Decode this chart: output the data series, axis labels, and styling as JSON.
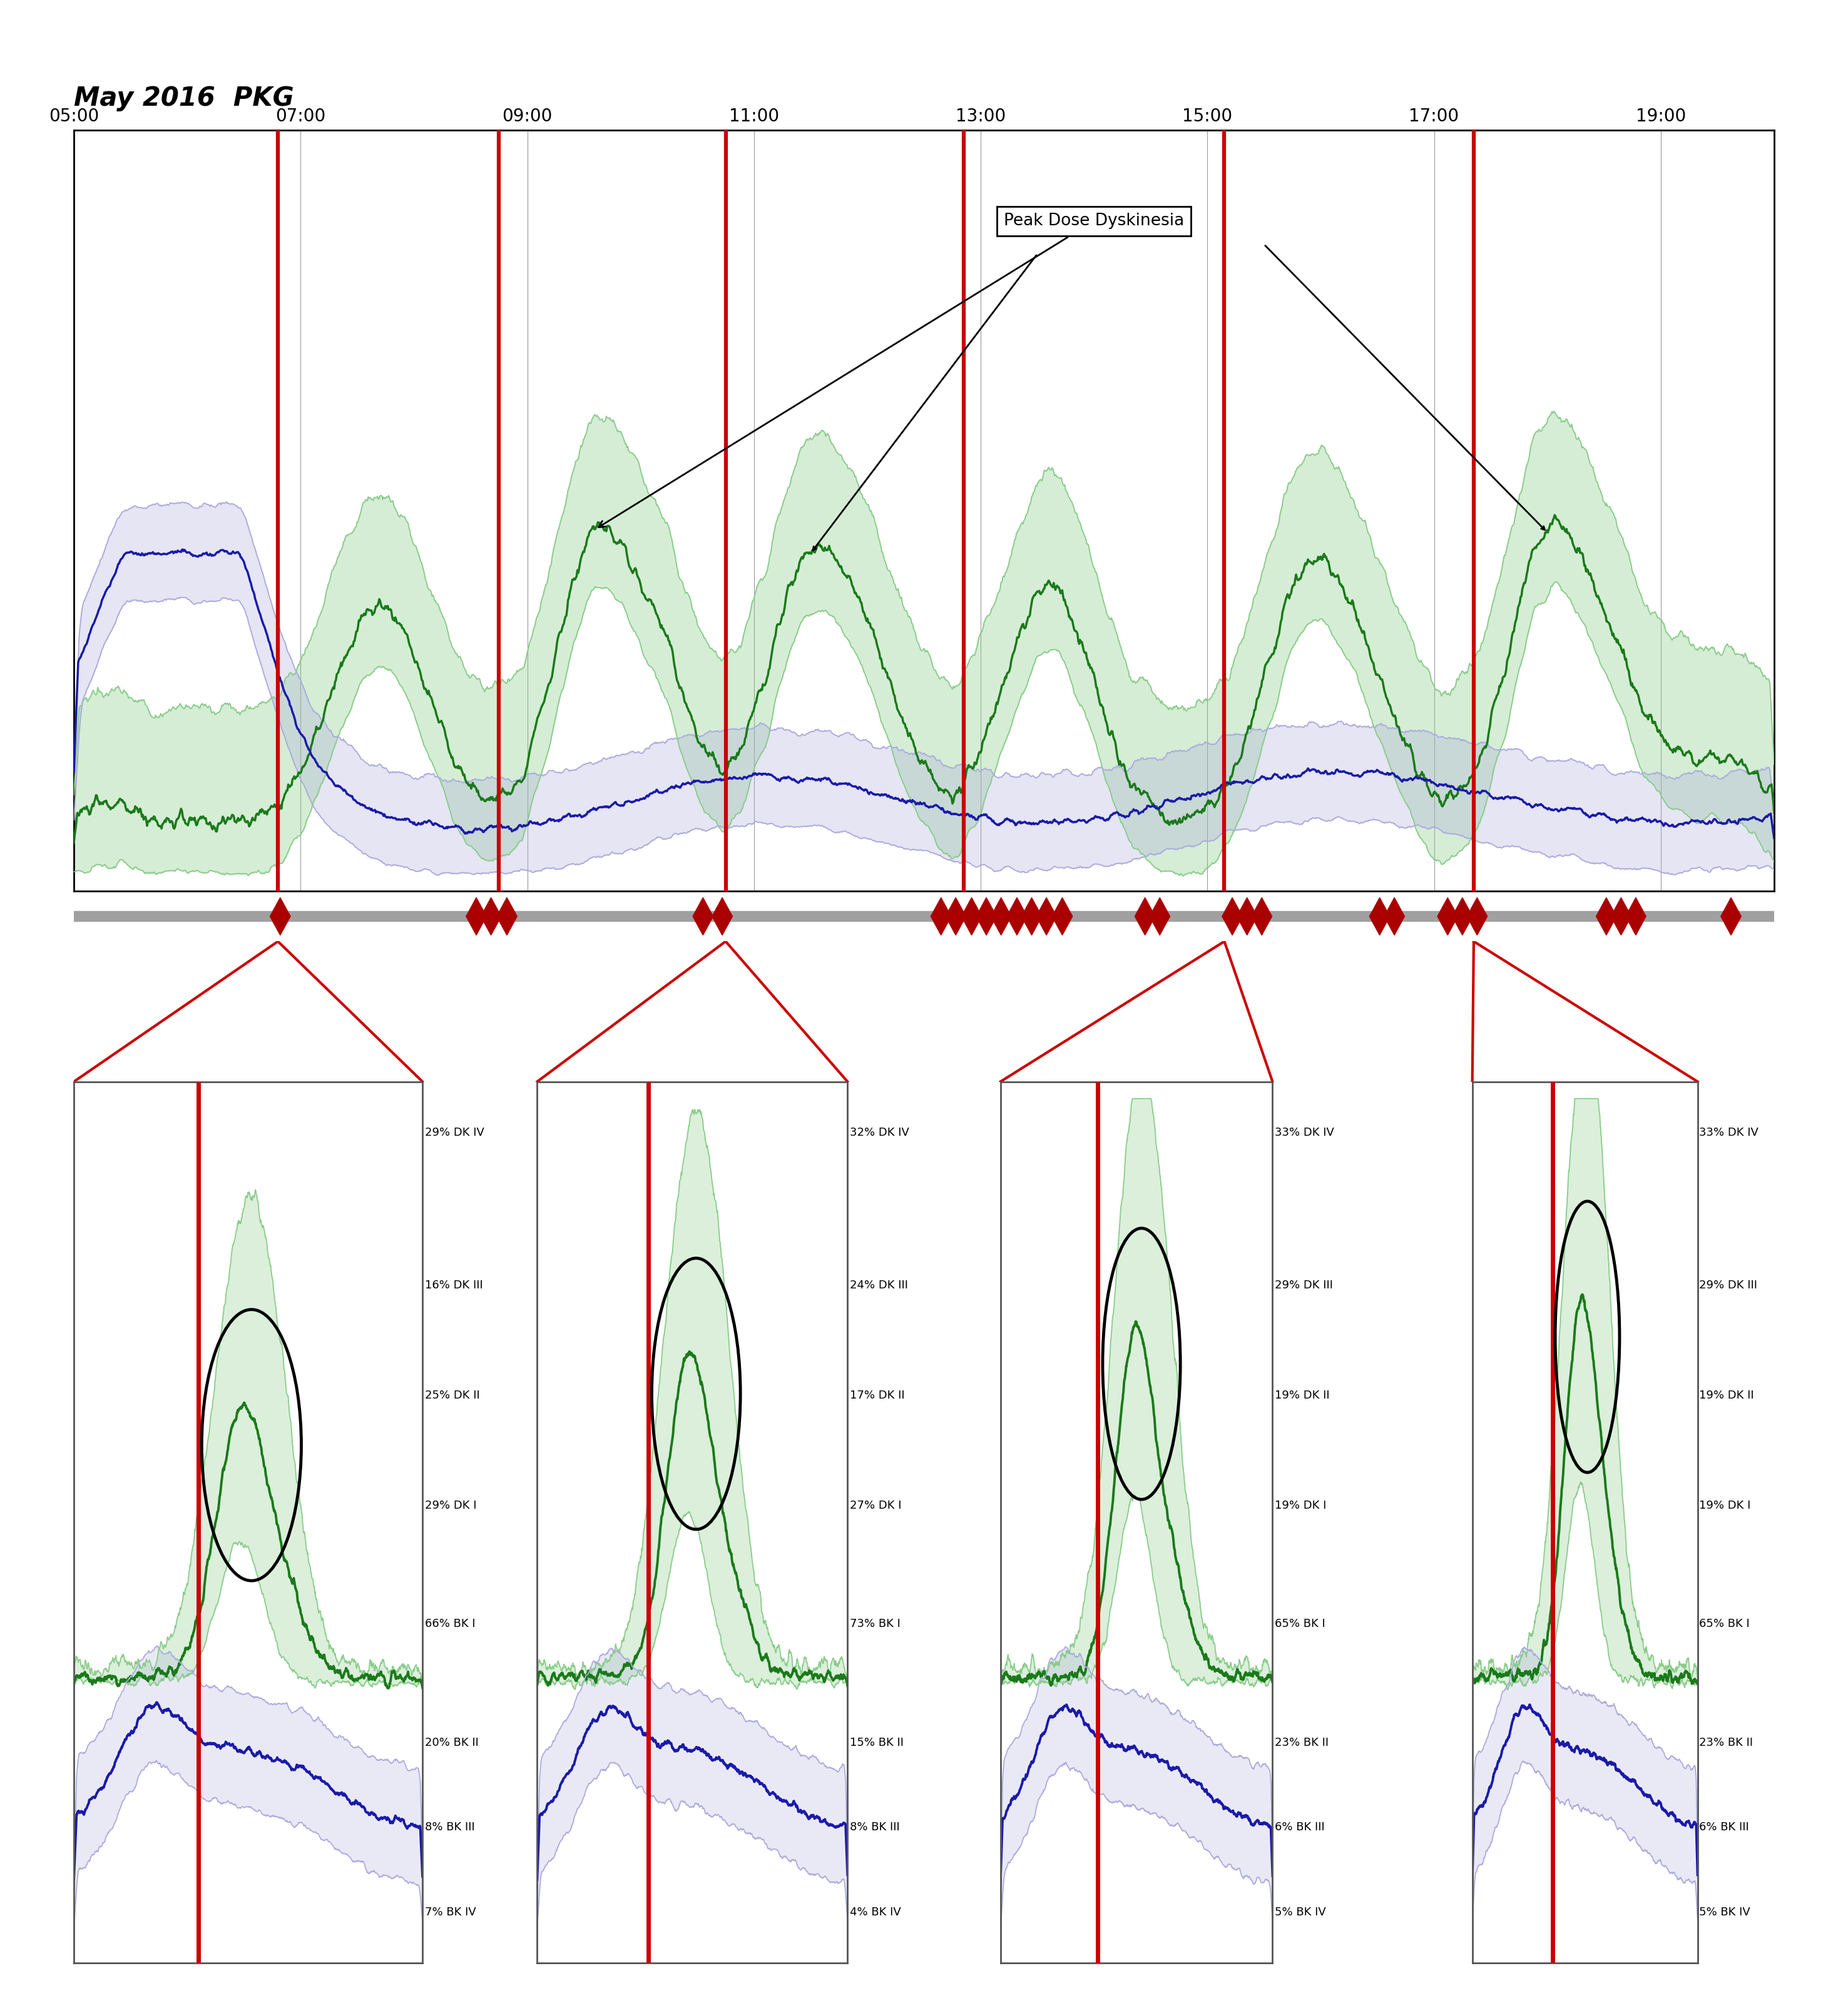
{
  "title": "May 2016  PKG",
  "annotation_text": "Peak Dose Dyskinesia",
  "top_x_ticks": [
    "05:00",
    "07:00",
    "09:00",
    "11:00",
    "13:00",
    "15:00",
    "17:00",
    "19:00"
  ],
  "tick_positions": [
    0,
    2,
    4,
    6,
    8,
    10,
    12,
    14
  ],
  "red_lines_top": [
    1.8,
    3.75,
    5.75,
    7.85,
    10.15,
    12.35
  ],
  "diamond_x": [
    1.82,
    3.55,
    3.68,
    3.82,
    5.55,
    5.72,
    7.65,
    7.78,
    7.92,
    8.05,
    8.18,
    8.32,
    8.45,
    8.58,
    8.72,
    9.45,
    9.58,
    10.22,
    10.35,
    10.48,
    11.52,
    11.65,
    12.12,
    12.25,
    12.38,
    13.52,
    13.65,
    13.78,
    14.62
  ],
  "panel_labels": [
    {
      "dk": [
        "29% DK IV",
        "16% DK III",
        "25% DK II",
        "29% DK I"
      ],
      "bk": [
        "66% BK I",
        "20% BK II",
        "8% BK III",
        "7% BK IV"
      ]
    },
    {
      "dk": [
        "32% DK IV",
        "24% DK III",
        "17% DK II",
        "27% DK I"
      ],
      "bk": [
        "73% BK I",
        "15% BK II",
        "8% BK III",
        "4% BK IV"
      ]
    },
    {
      "dk": [
        "33% DK IV",
        "29% DK III",
        "19% DK II",
        "19% DK I"
      ],
      "bk": [
        "65% BK I",
        "23% BK II",
        "6% BK III",
        "5% BK IV"
      ]
    },
    {
      "dk": [
        "33% DK IV",
        "29% DK III",
        "19% DK II",
        "19% DK I"
      ],
      "bk": [
        "65% BK I",
        "23% BK II",
        "6% BK III",
        "5% BK IV"
      ]
    }
  ],
  "green_dark": "#1a7a1a",
  "green_light": "#88cc88",
  "blue_dark": "#1a1aaa",
  "blue_light": "#aaaadd",
  "red_color": "#cc0000",
  "grid_color": "#999999",
  "diamond_color": "#aa0000"
}
